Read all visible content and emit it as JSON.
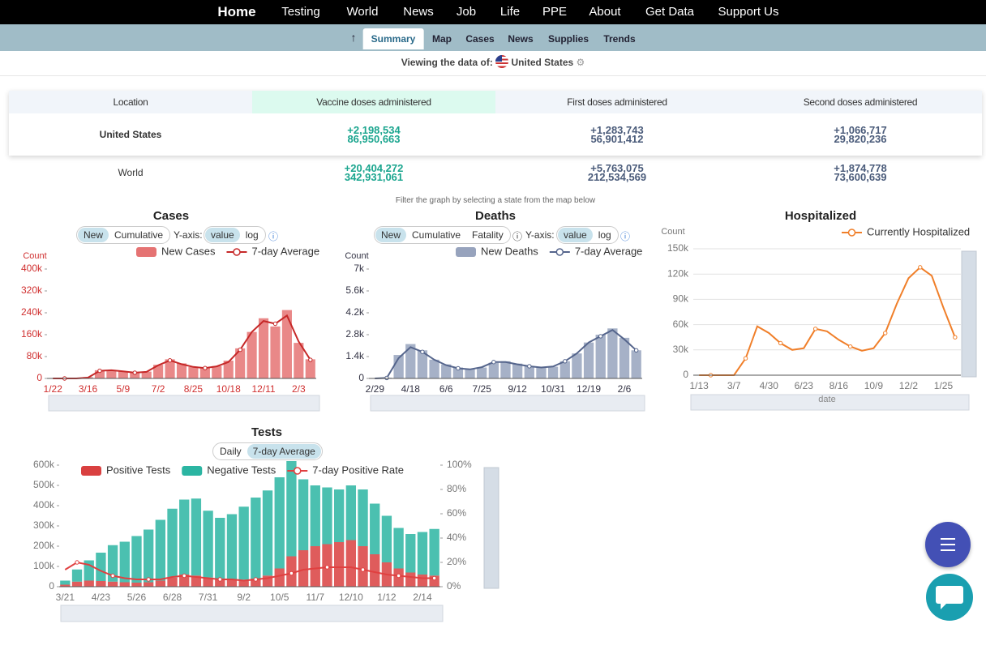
{
  "nav": [
    "Home",
    "Testing",
    "World",
    "News",
    "Job",
    "Life",
    "PPE",
    "About",
    "Get Data",
    "Support Us"
  ],
  "subnav": [
    "Summary",
    "Map",
    "Cases",
    "News",
    "Supplies",
    "Trends"
  ],
  "viewing": {
    "label": "Viewing the data of:",
    "location": "United States"
  },
  "table": {
    "header": [
      "Location",
      "Vaccine doses administered",
      "First doses administered",
      "Second doses administered"
    ],
    "rows": [
      [
        "United States",
        [
          "+2,198,534",
          "86,950,663"
        ],
        [
          "+1,283,743",
          "56,901,412"
        ],
        [
          "+1,066,717",
          "29,820,236"
        ]
      ],
      [
        "World",
        [
          "+20,404,272",
          "342,931,061"
        ],
        [
          "+5,763,075",
          "212,534,569"
        ],
        [
          "+1,874,778",
          "73,600,639"
        ]
      ]
    ]
  },
  "filter_note": "Filter the graph by selecting a state from the map below",
  "chart_data": [
    {
      "type": "combo",
      "title": "Cases",
      "y_label": "Count",
      "controls": [
        "New",
        "Cumulative",
        "Y-axis:",
        "value",
        "log"
      ],
      "categories": [
        "1/22",
        null,
        null,
        "3/16",
        null,
        null,
        "5/9",
        null,
        null,
        "7/2",
        null,
        null,
        "8/25",
        null,
        null,
        "10/18",
        null,
        null,
        "12/11",
        null,
        null,
        "2/3",
        null
      ],
      "series": [
        {
          "name": "New Cases",
          "type": "bar",
          "color": "#e57373",
          "values": [
            0,
            0,
            0,
            5000,
            30000,
            30000,
            25000,
            22000,
            25000,
            50000,
            70000,
            55000,
            42000,
            40000,
            45000,
            65000,
            110000,
            170000,
            220000,
            190000,
            250000,
            130000,
            70000
          ]
        },
        {
          "name": "7-day Average",
          "type": "line",
          "color": "#c62828",
          "values": [
            0,
            0,
            0,
            3000,
            28000,
            30000,
            26000,
            21000,
            24000,
            48000,
            66000,
            52000,
            42000,
            38000,
            44000,
            60000,
            105000,
            170000,
            210000,
            200000,
            230000,
            135000,
            68000
          ]
        }
      ],
      "ylim": [
        0,
        400000
      ],
      "yticks": [
        0,
        {
          "value": 80000,
          "label": "80k"
        },
        {
          "value": 160000,
          "label": "160k"
        },
        {
          "value": 240000,
          "label": "240k"
        },
        {
          "value": 320000,
          "label": "320k"
        },
        {
          "value": 400000,
          "label": "400k"
        }
      ],
      "grid": false
    },
    {
      "type": "combo",
      "title": "Deaths",
      "y_label": "Count",
      "controls": [
        "New",
        "Cumulative",
        "Fatality",
        "Y-axis:",
        "value",
        "log"
      ],
      "categories": [
        "2/29",
        null,
        null,
        "4/18",
        null,
        null,
        "6/6",
        null,
        null,
        "7/25",
        null,
        null,
        "9/12",
        null,
        null,
        "10/31",
        null,
        null,
        "12/19",
        null,
        null,
        "2/6",
        null
      ],
      "series": [
        {
          "name": "New Deaths",
          "type": "bar",
          "color": "#97a3bd",
          "values": [
            0,
            50,
            1500,
            2200,
            1800,
            1200,
            900,
            700,
            600,
            700,
            1000,
            1100,
            950,
            800,
            700,
            750,
            1100,
            1600,
            2300,
            2800,
            3200,
            2600,
            1800
          ]
        },
        {
          "name": "7-day Average",
          "type": "line",
          "color": "#55658c",
          "values": [
            0,
            30,
            1300,
            2000,
            1700,
            1200,
            850,
            650,
            580,
            720,
            1050,
            1050,
            900,
            780,
            700,
            760,
            1100,
            1600,
            2300,
            2700,
            3100,
            2500,
            1800
          ]
        }
      ],
      "ylim": [
        0,
        7000
      ],
      "yticks": [
        0,
        {
          "value": 1400,
          "label": "1.4k"
        },
        {
          "value": 2800,
          "label": "2.8k"
        },
        {
          "value": 4200,
          "label": "4.2k"
        },
        {
          "value": 5600,
          "label": "5.6k"
        },
        {
          "value": 7000,
          "label": "7k"
        }
      ],
      "grid": false
    },
    {
      "type": "line",
      "title": "Hospitalized",
      "y_label": "Count",
      "x_label": "date",
      "categories": [
        "1/13",
        null,
        null,
        "3/7",
        null,
        null,
        "4/30",
        null,
        null,
        "6/23",
        null,
        null,
        "8/16",
        null,
        null,
        "10/9",
        null,
        null,
        "12/2",
        null,
        null,
        "1/25",
        null
      ],
      "series": [
        {
          "name": "Currently Hospitalized",
          "type": "line",
          "color": "#f07f2a",
          "values": [
            0,
            0,
            0,
            0,
            20000,
            58000,
            50000,
            38000,
            30000,
            32000,
            55000,
            52000,
            42000,
            34000,
            29000,
            32000,
            50000,
            85000,
            115000,
            128000,
            118000,
            80000,
            45000
          ]
        }
      ],
      "ylim": [
        0,
        150000
      ],
      "yticks": [
        0,
        {
          "value": 30000,
          "label": "30k"
        },
        {
          "value": 60000,
          "label": "60k"
        },
        {
          "value": 90000,
          "label": "90k"
        },
        {
          "value": 120000,
          "label": "120k"
        },
        {
          "value": 150000,
          "label": "150k"
        }
      ],
      "grid": true
    },
    {
      "type": "combo",
      "title": "Tests",
      "stacked": true,
      "controls": [
        "Daily",
        "7-day Average"
      ],
      "categories": [
        "3/21",
        null,
        null,
        "4/23",
        null,
        null,
        "5/26",
        null,
        null,
        "6/28",
        null,
        null,
        "7/31",
        null,
        null,
        "9/2",
        null,
        null,
        "10/5",
        null,
        null,
        "11/7",
        null,
        null,
        "12/10",
        null,
        null,
        "1/12",
        null,
        null,
        "2/14",
        null
      ],
      "series": [
        {
          "name": "Positive Tests",
          "type": "bar",
          "color": "#d94040",
          "values": [
            10000,
            25000,
            30000,
            28000,
            25000,
            22000,
            20000,
            22000,
            30000,
            45000,
            60000,
            55000,
            45000,
            40000,
            38000,
            35000,
            40000,
            55000,
            90000,
            150000,
            180000,
            200000,
            210000,
            220000,
            230000,
            200000,
            160000,
            120000,
            90000,
            70000,
            60000,
            55000
          ]
        },
        {
          "name": "Negative Tests",
          "type": "bar",
          "color": "#2bb5a2",
          "values": [
            20000,
            60000,
            100000,
            140000,
            180000,
            200000,
            230000,
            260000,
            300000,
            340000,
            370000,
            380000,
            330000,
            300000,
            320000,
            360000,
            400000,
            420000,
            450000,
            470000,
            350000,
            300000,
            280000,
            260000,
            270000,
            280000,
            250000,
            230000,
            200000,
            190000,
            210000,
            230000
          ]
        },
        {
          "name": "7-day Positive Rate",
          "type": "line",
          "axis": "y2",
          "color": "#e04040",
          "values": [
            14,
            20,
            18,
            13,
            9,
            7,
            6,
            6,
            6,
            8,
            9,
            8,
            7,
            6,
            6,
            5,
            6,
            7,
            9,
            11,
            14,
            15,
            16,
            16,
            16,
            14,
            12,
            10,
            9,
            8,
            7,
            7
          ]
        }
      ],
      "ylim": [
        0,
        600000
      ],
      "yticks": [
        0,
        {
          "value": 100000,
          "label": "100k"
        },
        {
          "value": 200000,
          "label": "200k"
        },
        {
          "value": 300000,
          "label": "300k"
        },
        {
          "value": 400000,
          "label": "400k"
        },
        {
          "value": 500000,
          "label": "500k"
        },
        {
          "value": 600000,
          "label": "600k"
        }
      ],
      "y2lim": [
        0,
        100
      ],
      "y2ticks": [
        {
          "value": 0,
          "label": "0%"
        },
        {
          "value": 20,
          "label": "20%"
        },
        {
          "value": 40,
          "label": "40%"
        },
        {
          "value": 60,
          "label": "60%"
        },
        {
          "value": 80,
          "label": "80%"
        },
        {
          "value": 100,
          "label": "100%"
        }
      ],
      "grid": false
    }
  ]
}
